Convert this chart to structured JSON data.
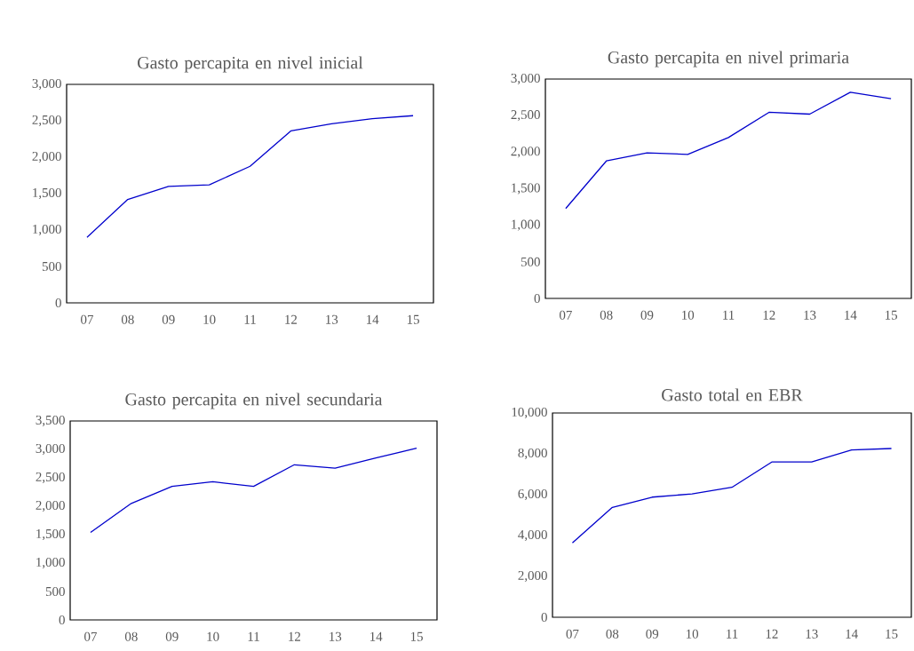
{
  "chart_data": [
    {
      "type": "line",
      "title": "Gasto percapita en nivel inicial",
      "categories": [
        "07",
        "08",
        "09",
        "10",
        "11",
        "12",
        "13",
        "14",
        "15"
      ],
      "color": "#0000cc",
      "values": [
        900,
        1420,
        1600,
        1620,
        1875,
        2360,
        2460,
        2530,
        2570
      ],
      "ylim": [
        0,
        3000
      ],
      "yticks": [
        0,
        500,
        {
          "value": 1000,
          "label": "1,000"
        },
        {
          "value": 1500,
          "label": "1,500"
        },
        {
          "value": 2000,
          "label": "2,000"
        },
        {
          "value": 2500,
          "label": "2,500"
        },
        {
          "value": 3000,
          "label": "3,000"
        }
      ]
    },
    {
      "type": "line",
      "title": "Gasto percapita en nivel primaria",
      "categories": [
        "07",
        "08",
        "09",
        "10",
        "11",
        "12",
        "13",
        "14",
        "15"
      ],
      "color": "#0000cc",
      "values": [
        1230,
        1880,
        1990,
        1970,
        2200,
        2545,
        2520,
        2820,
        2730
      ],
      "ylim": [
        0,
        3000
      ],
      "yticks": [
        0,
        500,
        {
          "value": 1000,
          "label": "1,000"
        },
        {
          "value": 1500,
          "label": "1,500"
        },
        {
          "value": 2000,
          "label": "2,000"
        },
        {
          "value": 2500,
          "label": "2,500"
        },
        {
          "value": 3000,
          "label": "3,000"
        }
      ]
    },
    {
      "type": "line",
      "title": "Gasto percapita en nivel secundaria",
      "categories": [
        "07",
        "08",
        "09",
        "10",
        "11",
        "12",
        "13",
        "14",
        "15"
      ],
      "color": "#0000cc",
      "values": [
        1540,
        2050,
        2350,
        2430,
        2350,
        2730,
        2670,
        2850,
        3020
      ],
      "ylim": [
        0,
        3500
      ],
      "yticks": [
        0,
        500,
        {
          "value": 1000,
          "label": "1,000"
        },
        {
          "value": 1500,
          "label": "1,500"
        },
        {
          "value": 2000,
          "label": "2,000"
        },
        {
          "value": 2500,
          "label": "2,500"
        },
        {
          "value": 3000,
          "label": "3,000"
        },
        {
          "value": 3500,
          "label": "3,500"
        }
      ]
    },
    {
      "type": "line",
      "title": "Gasto total en EBR",
      "categories": [
        "07",
        "08",
        "09",
        "10",
        "11",
        "12",
        "13",
        "14",
        "15"
      ],
      "color": "#0000cc",
      "values": [
        3640,
        5380,
        5880,
        6040,
        6360,
        7600,
        7600,
        8190,
        8260
      ],
      "ylim": [
        0,
        10000
      ],
      "yticks": [
        0,
        {
          "value": 2000,
          "label": "2,000"
        },
        {
          "value": 4000,
          "label": "4,000"
        },
        {
          "value": 6000,
          "label": "6,000"
        },
        {
          "value": 8000,
          "label": "8,000"
        },
        {
          "value": 10000,
          "label": "10,000"
        }
      ]
    }
  ]
}
